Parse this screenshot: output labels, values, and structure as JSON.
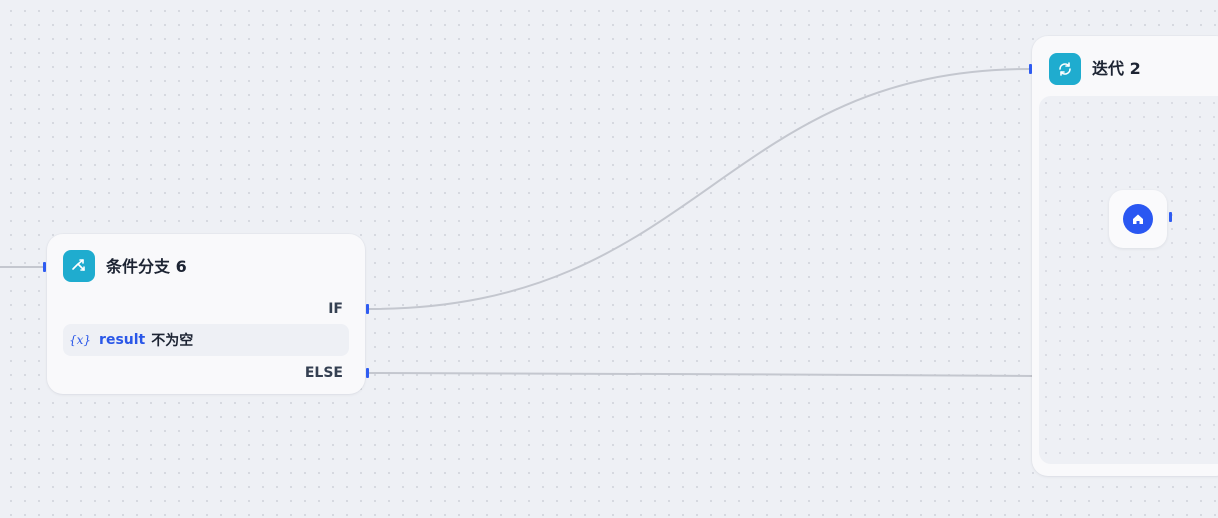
{
  "colors": {
    "canvas_bg": "#eef0f5",
    "node_icon_bg": "#1faccf",
    "handle": "#2f5cf1",
    "edge": "#c4c7cf",
    "variable": "#2a57e8",
    "start_icon_bg": "#2a57f2"
  },
  "condition_node": {
    "title": "条件分支 6",
    "icon": "branch-icon",
    "if_label": "IF",
    "else_label": "ELSE",
    "condition": {
      "var_icon_text": "{x}",
      "variable": "result",
      "operator": "不为空"
    }
  },
  "iteration_node": {
    "title": "迭代 2",
    "icon": "loop-icon",
    "start_icon": "home-icon"
  }
}
